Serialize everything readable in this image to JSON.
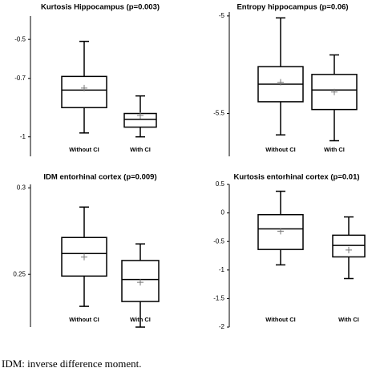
{
  "chart_data": [
    {
      "type": "box",
      "title": "Kurtosis Hippocampus (p=0.003)",
      "categories": [
        "Without CI",
        "With CI"
      ],
      "boxes": [
        {
          "min": -0.98,
          "q1": -0.85,
          "median": -0.76,
          "q3": -0.69,
          "max": -0.51,
          "mean": -0.75
        },
        {
          "min": -1.0,
          "q1": -0.95,
          "median": -0.91,
          "q3": -0.88,
          "max": -0.79,
          "mean": -0.89
        }
      ],
      "ylim": [
        -1.1,
        -0.38
      ],
      "yticks": [
        -0.5,
        -0.7,
        -1
      ]
    },
    {
      "type": "box",
      "title": "Entropy hippocampus (p=0.06)",
      "categories": [
        "Without CI",
        "With CI"
      ],
      "boxes": [
        {
          "min": -5.61,
          "q1": -5.44,
          "median": -5.35,
          "q3": -5.26,
          "max": -5.01,
          "mean": -5.34
        },
        {
          "min": -5.64,
          "q1": -5.48,
          "median": -5.38,
          "q3": -5.3,
          "max": -5.2,
          "mean": -5.39
        }
      ],
      "ylim": [
        -5.72,
        -4.98
      ],
      "yticks": [
        -5,
        -5.5
      ]
    },
    {
      "type": "box",
      "title": "IDM entorhinal cortex (p=0.009)",
      "categories": [
        "Without CI",
        "With CI"
      ],
      "boxes": [
        {
          "min": 0.2315,
          "q1": 0.249,
          "median": 0.262,
          "q3": 0.2713,
          "max": 0.2889,
          "mean": 0.26
        },
        {
          "min": 0.2195,
          "q1": 0.2343,
          "median": 0.247,
          "q3": 0.258,
          "max": 0.2676,
          "mean": 0.2454
        }
      ],
      "ylim": [
        0.2195,
        0.302
      ],
      "yticks": [
        0.3,
        0.25
      ]
    },
    {
      "type": "box",
      "title": "Kurtosis entorhinal cortex (p=0.01)",
      "categories": [
        "Without CI",
        "With CI"
      ],
      "boxes": [
        {
          "min": -0.91,
          "q1": -0.64,
          "median": -0.28,
          "q3": -0.03,
          "max": 0.38,
          "mean": -0.32
        },
        {
          "min": -1.15,
          "q1": -0.77,
          "median": -0.57,
          "q3": -0.39,
          "max": -0.07,
          "mean": -0.65
        }
      ],
      "ylim": [
        -2,
        0.5
      ],
      "yticks": [
        0.5,
        0,
        -0.5,
        -1,
        -1.5,
        -2
      ]
    }
  ],
  "caption": "IDM: inverse difference moment."
}
